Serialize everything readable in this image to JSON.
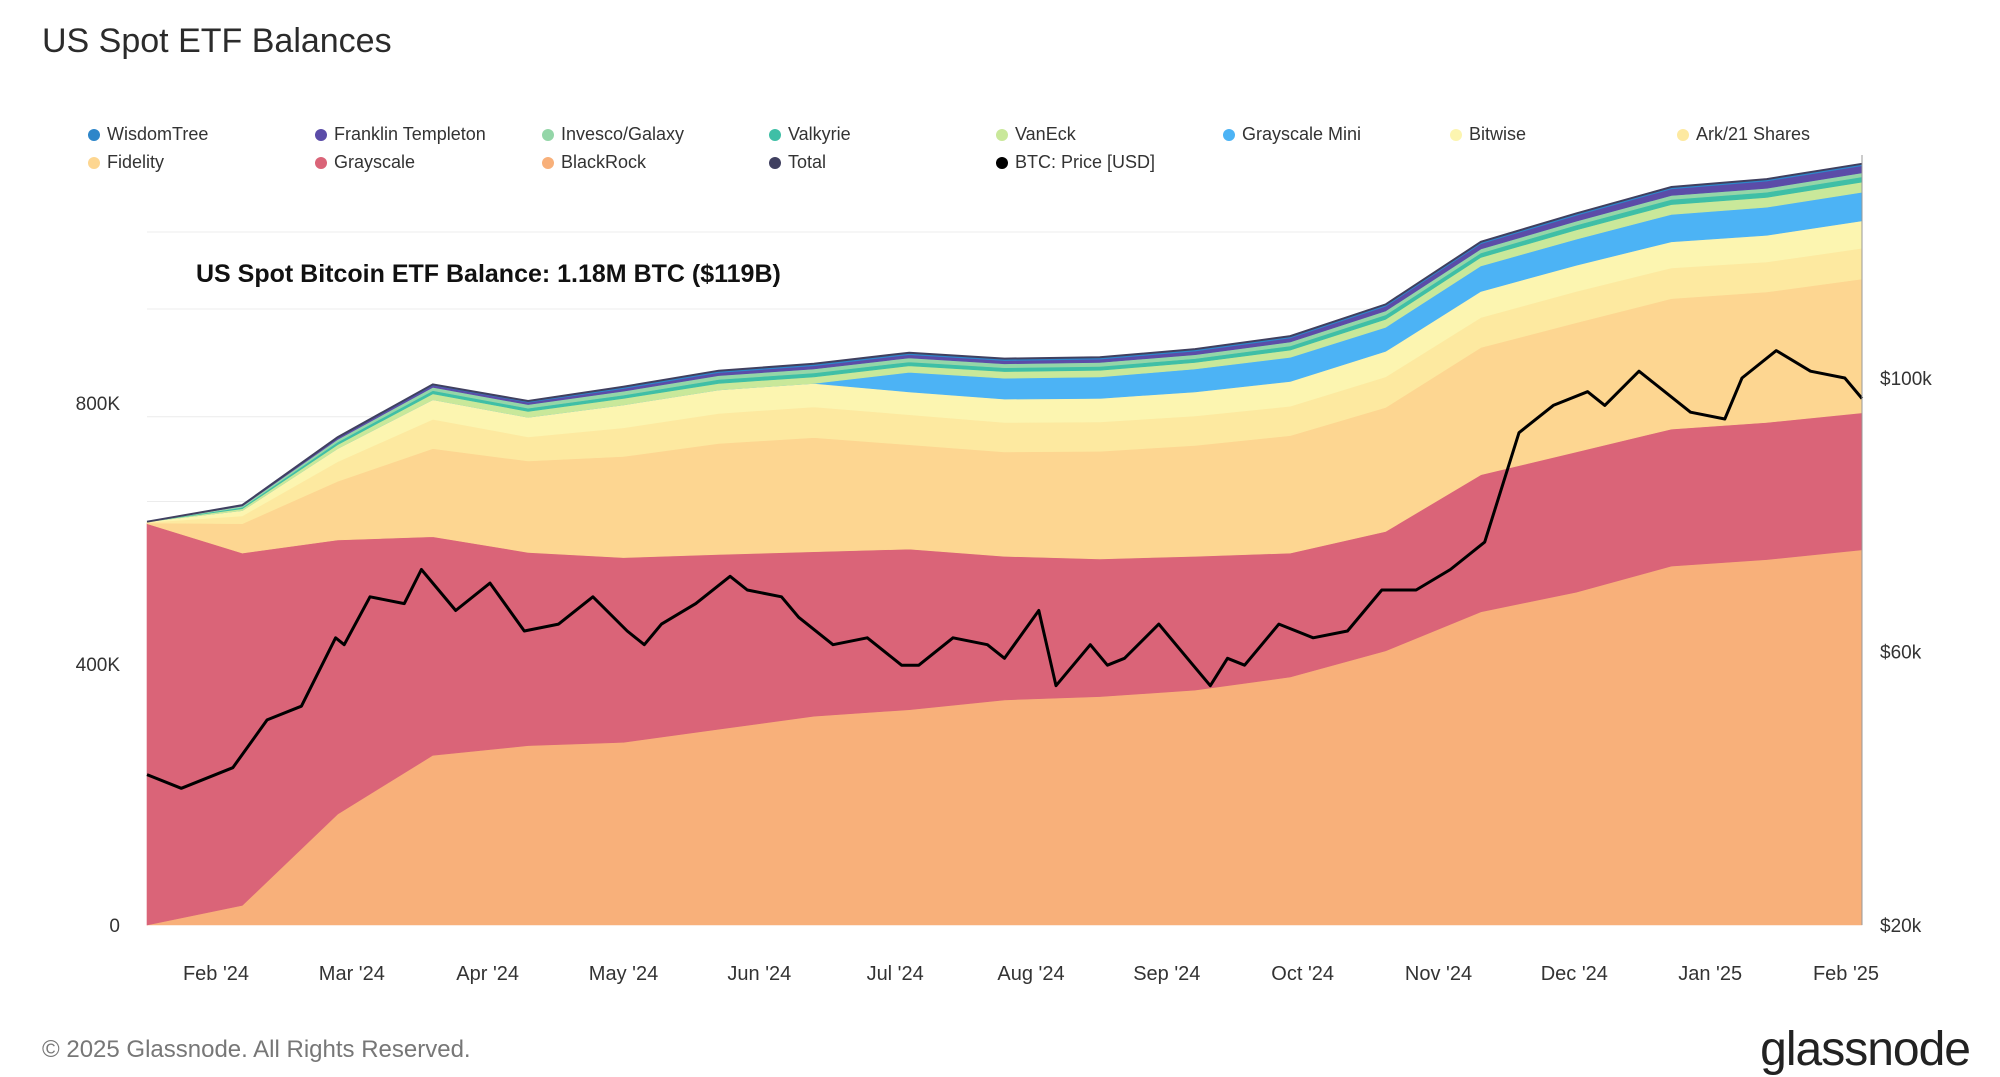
{
  "page": {
    "title": "US Spot ETF Balances"
  },
  "footer": {
    "copyright": "© 2025 Glassnode. All Rights Reserved.",
    "logo": "glassnode"
  },
  "chart_data": {
    "type": "area",
    "title": "US Spot Bitcoin ETF Balance: 1.18M BTC ($119B)",
    "xlabel": "",
    "ylabel": "",
    "ylim": [
      0,
      1180000
    ],
    "y2_ticks": [
      {
        "label": "$20k",
        "value": 20000
      },
      {
        "label": "$60k",
        "value": 60000
      },
      {
        "label": "$100k",
        "value": 100000
      }
    ],
    "y_ticks": [
      {
        "label": "0",
        "value": 0
      },
      {
        "label": "400K",
        "value": 400000
      },
      {
        "label": "800K",
        "value": 800000
      }
    ],
    "x_ticks": [
      "Feb '24",
      "Mar '24",
      "Apr '24",
      "May '24",
      "Jun '24",
      "Jul '24",
      "Aug '24",
      "Sep '24",
      "Oct '24",
      "Nov '24",
      "Dec '24",
      "Jan '25",
      "Feb '25"
    ],
    "x": [
      "Jan 11 '24",
      "Feb 1 '24",
      "Mar 1 '24",
      "Apr 1 '24",
      "May 1 '24",
      "Jun 1 '24",
      "Jul 1 '24",
      "Jul 30 '24",
      "Aug 5 '24",
      "Sep 1 '24",
      "Sep 6 '24",
      "Oct 1 '24",
      "Nov 1 '24",
      "Nov 15 '24",
      "Dec 1 '24",
      "Dec 17 '24",
      "Jan 1 '25",
      "Jan 20 '25",
      "Feb 6 '25"
    ],
    "legend": [
      "WisdomTree",
      "Franklin Templeton",
      "Invesco/Galaxy",
      "Valkyrie",
      "VanEck",
      "Grayscale Mini",
      "Bitwise",
      "Ark/21 Shares",
      "Fidelity",
      "Grayscale",
      "BlackRock",
      "Total",
      "BTC: Price [USD]"
    ],
    "colors": {
      "WisdomTree": "#2e86c9",
      "Franklin Templeton": "#5b4ca8",
      "Invesco/Galaxy": "#94d6a8",
      "Valkyrie": "#3fbfa6",
      "VanEck": "#c9e89a",
      "Grayscale Mini": "#4cb3f5",
      "Bitwise": "#fcf5b0",
      "Ark/21 Shares": "#fde9a0",
      "Fidelity": "#fdd691",
      "Grayscale": "#da6478",
      "BlackRock": "#f8b07a",
      "Total": "#404060",
      "BTC: Price [USD]": "#000000"
    },
    "series": [
      {
        "name": "BlackRock",
        "values": [
          0,
          30000,
          170000,
          260000,
          275000,
          280000,
          300000,
          320000,
          330000,
          345000,
          350000,
          360000,
          380000,
          420000,
          480000,
          510000,
          550000,
          560000,
          575000
        ]
      },
      {
        "name": "Grayscale",
        "values": [
          615000,
          540000,
          420000,
          335000,
          296000,
          283000,
          268000,
          252000,
          246000,
          220000,
          211000,
          205000,
          190000,
          183000,
          210000,
          215000,
          210000,
          210000,
          210000
        ]
      },
      {
        "name": "Fidelity",
        "values": [
          1000,
          45000,
          90000,
          135000,
          140000,
          155000,
          170000,
          175000,
          160000,
          160000,
          165000,
          170000,
          180000,
          190000,
          195000,
          198000,
          200000,
          200000,
          205000
        ]
      },
      {
        "name": "Ark/21 Shares",
        "values": [
          1000,
          12000,
          30000,
          45000,
          37000,
          44000,
          46000,
          47000,
          46000,
          45000,
          45000,
          45000,
          45000,
          47000,
          46000,
          48000,
          47000,
          46000,
          47000
        ]
      },
      {
        "name": "Bitwise",
        "values": [
          1000,
          8000,
          20000,
          30000,
          30000,
          35000,
          36000,
          36000,
          35000,
          36000,
          36000,
          37000,
          38000,
          39000,
          40000,
          40000,
          40000,
          41000,
          42000
        ]
      },
      {
        "name": "Grayscale Mini",
        "values": [
          0,
          0,
          0,
          0,
          0,
          0,
          0,
          0,
          30000,
          32000,
          33000,
          35000,
          37000,
          37000,
          39000,
          40000,
          42000,
          43000,
          44000
        ]
      },
      {
        "name": "VanEck",
        "values": [
          0,
          3000,
          6000,
          9000,
          9000,
          10000,
          10000,
          10000,
          10000,
          10000,
          10000,
          10000,
          11000,
          12000,
          13000,
          14000,
          15000,
          15000,
          15500
        ]
      },
      {
        "name": "Valkyrie",
        "values": [
          0,
          2000,
          4000,
          5000,
          5000,
          5000,
          6000,
          6000,
          6000,
          6000,
          6000,
          6000,
          6500,
          7000,
          7000,
          7500,
          8000,
          8000,
          8000
        ]
      },
      {
        "name": "Invesco/Galaxy",
        "values": [
          0,
          2000,
          4000,
          5000,
          5500,
          6000,
          6000,
          6000,
          6000,
          6000,
          6000,
          6000,
          6000,
          6000,
          6000,
          6000,
          6000,
          6000,
          6000
        ]
      },
      {
        "name": "Franklin Templeton",
        "values": [
          0,
          1000,
          2500,
          3000,
          3500,
          4000,
          4500,
          5000,
          5000,
          5000,
          5000,
          5500,
          6000,
          7000,
          8000,
          9000,
          10000,
          11000,
          11000
        ]
      },
      {
        "name": "WisdomTree",
        "values": [
          0,
          500,
          1000,
          1500,
          2000,
          3000,
          3000,
          3000,
          3000,
          3000,
          3000,
          3000,
          3000,
          3000,
          3000,
          3000,
          3000,
          3000,
          3000
        ]
      }
    ],
    "btc_price": {
      "name": "BTC: Price [USD]",
      "x_frac": [
        0,
        0.02,
        0.05,
        0.07,
        0.09,
        0.11,
        0.115,
        0.13,
        0.15,
        0.16,
        0.18,
        0.2,
        0.22,
        0.24,
        0.26,
        0.28,
        0.29,
        0.3,
        0.32,
        0.34,
        0.35,
        0.37,
        0.38,
        0.4,
        0.42,
        0.44,
        0.45,
        0.47,
        0.49,
        0.5,
        0.52,
        0.53,
        0.55,
        0.56,
        0.57,
        0.59,
        0.61,
        0.62,
        0.63,
        0.64,
        0.66,
        0.68,
        0.7,
        0.72,
        0.74,
        0.76,
        0.78,
        0.8,
        0.82,
        0.84,
        0.85,
        0.87,
        0.9,
        0.92,
        0.93,
        0.95,
        0.97,
        0.99,
        1
      ],
      "values": [
        42000,
        40000,
        43000,
        50000,
        52000,
        62000,
        61000,
        68000,
        67000,
        72000,
        66000,
        70000,
        63000,
        64000,
        68000,
        63000,
        61000,
        64000,
        67000,
        71000,
        69000,
        68000,
        65000,
        61000,
        62000,
        58000,
        58000,
        62000,
        61000,
        59000,
        66000,
        55000,
        61000,
        58000,
        59000,
        64000,
        58000,
        55000,
        59000,
        58000,
        64000,
        62000,
        63000,
        69000,
        69000,
        72000,
        76000,
        92000,
        96000,
        98000,
        96000,
        101000,
        95000,
        94000,
        100000,
        104000,
        101000,
        100000,
        97000
      ]
    }
  }
}
